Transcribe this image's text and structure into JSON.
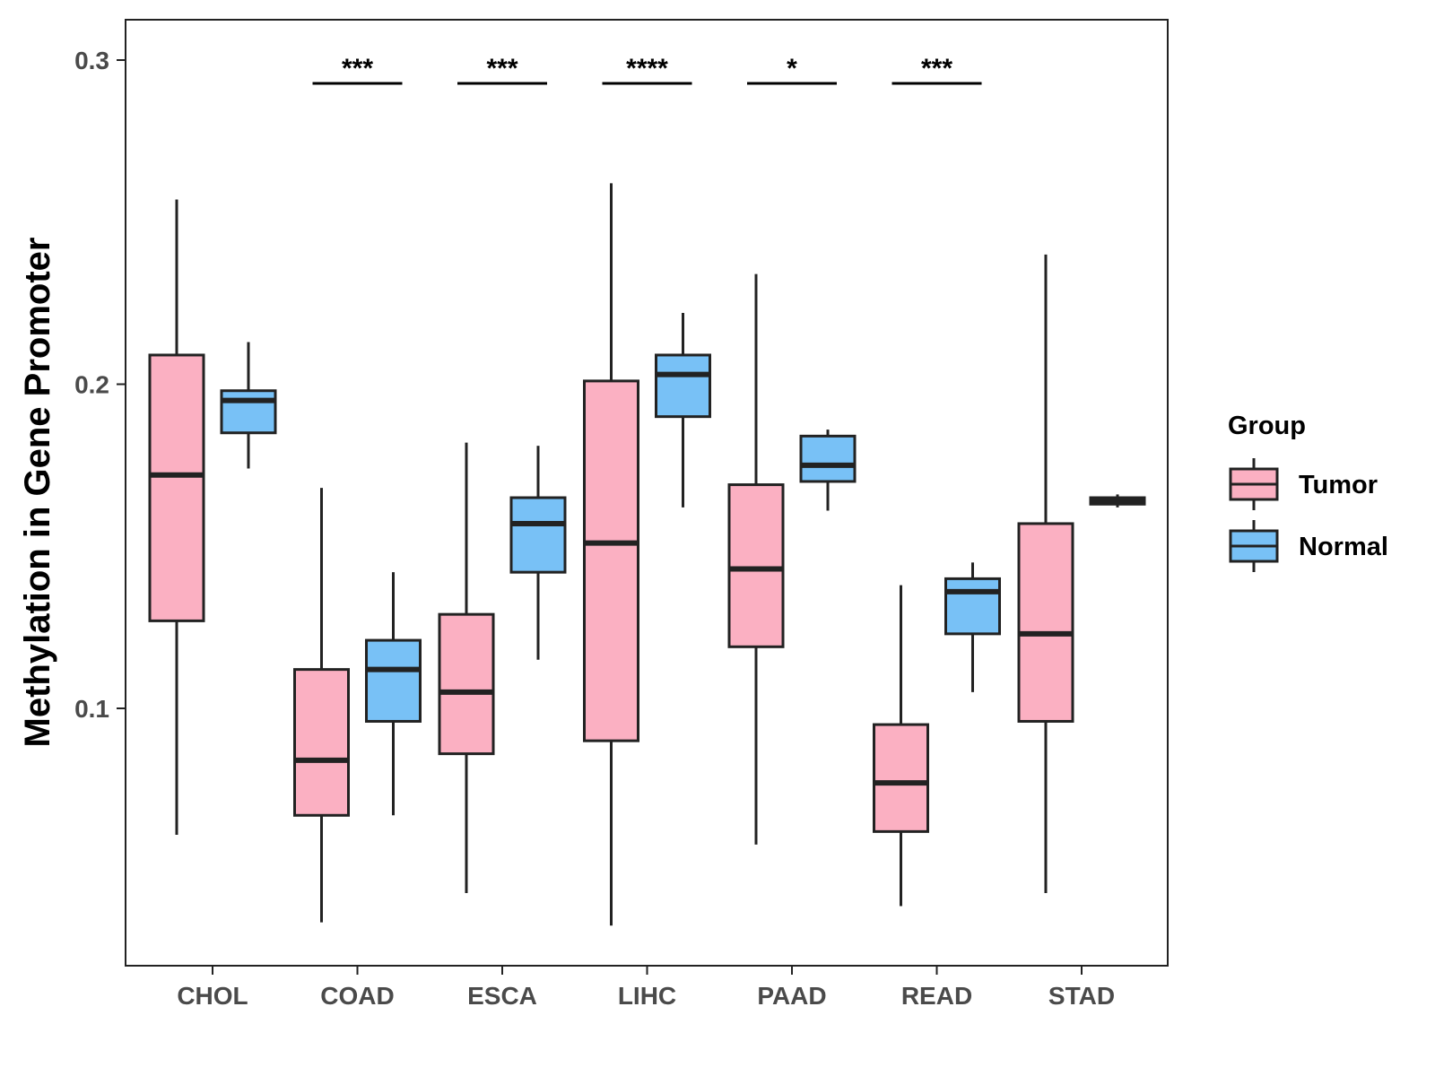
{
  "chart_data": {
    "type": "boxplot",
    "title": "",
    "xlabel": "",
    "ylabel": "Methylation in Gene Promoter",
    "ylim": [
      0.02,
      0.312
    ],
    "yticks": [
      0.1,
      0.2,
      0.3
    ],
    "ytick_labels": [
      "0.1",
      "0.2",
      "0.3"
    ],
    "grid": false,
    "legend": {
      "title": "Group",
      "position": "right",
      "entries": [
        {
          "name": "Tumor",
          "color": "#fbb0c2"
        },
        {
          "name": "Normal",
          "color": "#78c1f6"
        }
      ]
    },
    "categories": [
      "CHOL",
      "COAD",
      "ESCA",
      "LIHC",
      "PAAD",
      "READ",
      "STAD"
    ],
    "series": [
      {
        "name": "Tumor",
        "color": "#fbb0c2",
        "boxes": [
          {
            "min": 0.061,
            "q1": 0.127,
            "median": 0.172,
            "q3": 0.209,
            "max": 0.257
          },
          {
            "min": 0.034,
            "q1": 0.067,
            "median": 0.084,
            "q3": 0.112,
            "max": 0.168
          },
          {
            "min": 0.043,
            "q1": 0.086,
            "median": 0.105,
            "q3": 0.129,
            "max": 0.182
          },
          {
            "min": 0.033,
            "q1": 0.09,
            "median": 0.151,
            "q3": 0.201,
            "max": 0.262
          },
          {
            "min": 0.058,
            "q1": 0.119,
            "median": 0.143,
            "q3": 0.169,
            "max": 0.234
          },
          {
            "min": 0.039,
            "q1": 0.062,
            "median": 0.077,
            "q3": 0.095,
            "max": 0.138
          },
          {
            "min": 0.043,
            "q1": 0.096,
            "median": 0.123,
            "q3": 0.157,
            "max": 0.24
          }
        ]
      },
      {
        "name": "Normal",
        "color": "#78c1f6",
        "boxes": [
          {
            "min": 0.174,
            "q1": 0.185,
            "median": 0.195,
            "q3": 0.198,
            "max": 0.213
          },
          {
            "min": 0.067,
            "q1": 0.096,
            "median": 0.112,
            "q3": 0.121,
            "max": 0.142
          },
          {
            "min": 0.115,
            "q1": 0.142,
            "median": 0.157,
            "q3": 0.165,
            "max": 0.181
          },
          {
            "min": 0.162,
            "q1": 0.19,
            "median": 0.203,
            "q3": 0.209,
            "max": 0.222
          },
          {
            "min": 0.161,
            "q1": 0.17,
            "median": 0.175,
            "q3": 0.184,
            "max": 0.186
          },
          {
            "min": 0.105,
            "q1": 0.123,
            "median": 0.136,
            "q3": 0.14,
            "max": 0.145
          },
          {
            "min": 0.162,
            "q1": 0.163,
            "median": 0.164,
            "q3": 0.165,
            "max": 0.166
          }
        ]
      }
    ],
    "annotations": [
      {
        "category": "CHOL",
        "label": ""
      },
      {
        "category": "COAD",
        "label": "***"
      },
      {
        "category": "ESCA",
        "label": "***"
      },
      {
        "category": "LIHC",
        "label": "****"
      },
      {
        "category": "PAAD",
        "label": "*"
      },
      {
        "category": "READ",
        "label": "***"
      },
      {
        "category": "STAD",
        "label": ""
      }
    ]
  }
}
